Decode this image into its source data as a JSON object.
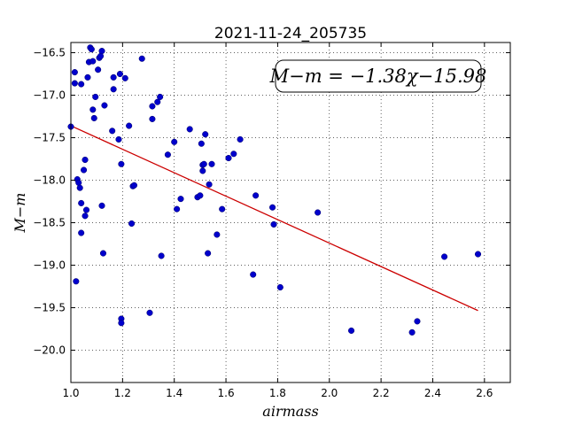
{
  "chart_data": {
    "type": "scatter",
    "title": "2021-11-24_205735",
    "xlabel": "airmass",
    "ylabel": "M−m",
    "xlim": [
      1.0,
      2.7
    ],
    "ylim": [
      -20.38,
      -16.38
    ],
    "invert_y": true,
    "grid": true,
    "x_ticks": [
      "1.0",
      "1.2",
      "1.4",
      "1.6",
      "1.8",
      "2.0",
      "2.2",
      "2.4",
      "2.6"
    ],
    "y_ticks": [
      "−16.5",
      "−17.0",
      "−17.5",
      "−18.0",
      "−18.5",
      "−19.0",
      "−19.5",
      "−20.0"
    ],
    "annotation": "M−m = −1.38χ−15.98",
    "point_color": "#0000cc",
    "fit_color": "#cc0000",
    "fit": {
      "slope": -1.38,
      "intercept": -15.98,
      "x_range": [
        1.0,
        2.575
      ]
    },
    "points": [
      [
        1.0,
        -17.37
      ],
      [
        1.015,
        -16.73
      ],
      [
        1.015,
        -16.86
      ],
      [
        1.02,
        -19.19
      ],
      [
        1.025,
        -17.99
      ],
      [
        1.03,
        -18.03
      ],
      [
        1.035,
        -18.09
      ],
      [
        1.04,
        -16.87
      ],
      [
        1.04,
        -18.27
      ],
      [
        1.04,
        -18.62
      ],
      [
        1.05,
        -17.88
      ],
      [
        1.055,
        -17.76
      ],
      [
        1.055,
        -18.42
      ],
      [
        1.06,
        -18.35
      ],
      [
        1.065,
        -16.79
      ],
      [
        1.07,
        -16.61
      ],
      [
        1.075,
        -16.44
      ],
      [
        1.08,
        -16.46
      ],
      [
        1.085,
        -16.6
      ],
      [
        1.085,
        -17.17
      ],
      [
        1.09,
        -17.27
      ],
      [
        1.095,
        -17.02
      ],
      [
        1.105,
        -16.7
      ],
      [
        1.11,
        -16.56
      ],
      [
        1.115,
        -16.54
      ],
      [
        1.12,
        -16.48
      ],
      [
        1.12,
        -18.3
      ],
      [
        1.125,
        -18.86
      ],
      [
        1.13,
        -17.12
      ],
      [
        1.16,
        -17.42
      ],
      [
        1.165,
        -16.93
      ],
      [
        1.165,
        -16.79
      ],
      [
        1.185,
        -17.52
      ],
      [
        1.19,
        -16.75
      ],
      [
        1.195,
        -17.81
      ],
      [
        1.195,
        -19.63
      ],
      [
        1.195,
        -19.68
      ],
      [
        1.21,
        -16.8
      ],
      [
        1.225,
        -17.36
      ],
      [
        1.235,
        -18.51
      ],
      [
        1.24,
        -18.07
      ],
      [
        1.245,
        -18.06
      ],
      [
        1.275,
        -16.57
      ],
      [
        1.305,
        -19.56
      ],
      [
        1.315,
        -17.13
      ],
      [
        1.315,
        -17.28
      ],
      [
        1.335,
        -17.08
      ],
      [
        1.345,
        -17.02
      ],
      [
        1.35,
        -18.89
      ],
      [
        1.375,
        -17.7
      ],
      [
        1.4,
        -17.55
      ],
      [
        1.41,
        -18.34
      ],
      [
        1.425,
        -18.22
      ],
      [
        1.46,
        -17.4
      ],
      [
        1.49,
        -18.2
      ],
      [
        1.5,
        -18.18
      ],
      [
        1.505,
        -17.57
      ],
      [
        1.51,
        -17.82
      ],
      [
        1.51,
        -17.89
      ],
      [
        1.515,
        -17.81
      ],
      [
        1.52,
        -17.46
      ],
      [
        1.53,
        -18.86
      ],
      [
        1.535,
        -18.05
      ],
      [
        1.545,
        -17.81
      ],
      [
        1.565,
        -18.64
      ],
      [
        1.585,
        -18.34
      ],
      [
        1.61,
        -17.74
      ],
      [
        1.63,
        -17.69
      ],
      [
        1.655,
        -17.52
      ],
      [
        1.705,
        -19.11
      ],
      [
        1.715,
        -18.18
      ],
      [
        1.78,
        -18.32
      ],
      [
        1.785,
        -18.52
      ],
      [
        1.81,
        -19.26
      ],
      [
        1.955,
        -18.38
      ],
      [
        2.085,
        -19.77
      ],
      [
        2.32,
        -19.79
      ],
      [
        2.34,
        -19.66
      ],
      [
        2.445,
        -18.9
      ],
      [
        2.575,
        -18.87
      ]
    ]
  }
}
